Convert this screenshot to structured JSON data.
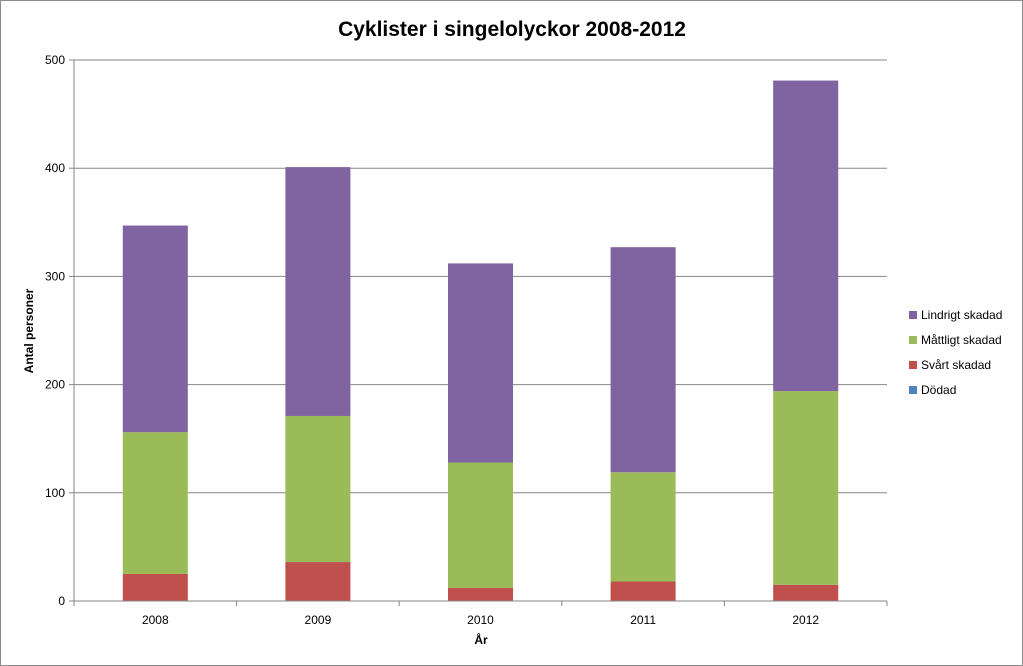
{
  "chart_data": {
    "type": "bar",
    "stacked": true,
    "title": "Cyklister i singelolyckor 2008-2012",
    "xlabel": "År",
    "ylabel": "Antal personer",
    "ylim": [
      0,
      500
    ],
    "yticks": [
      "0",
      "100",
      "200",
      "300",
      "400",
      "500"
    ],
    "categories": [
      "2008",
      "2009",
      "2010",
      "2011",
      "2012"
    ],
    "grid": true,
    "legend_position": "right",
    "series": [
      {
        "name": "Dödad",
        "color": "#4f81bd",
        "values": [
          0,
          0,
          0,
          0,
          0
        ]
      },
      {
        "name": "Svårt skadad",
        "color": "#c0504d",
        "values": [
          25,
          36,
          12,
          18,
          15
        ]
      },
      {
        "name": "Måttligt skadad",
        "color": "#9bbb59",
        "values": [
          131,
          135,
          116,
          101,
          179
        ]
      },
      {
        "name": "Lindrigt skadad",
        "color": "#8064a2",
        "values": [
          191,
          230,
          184,
          208,
          287
        ]
      }
    ]
  }
}
